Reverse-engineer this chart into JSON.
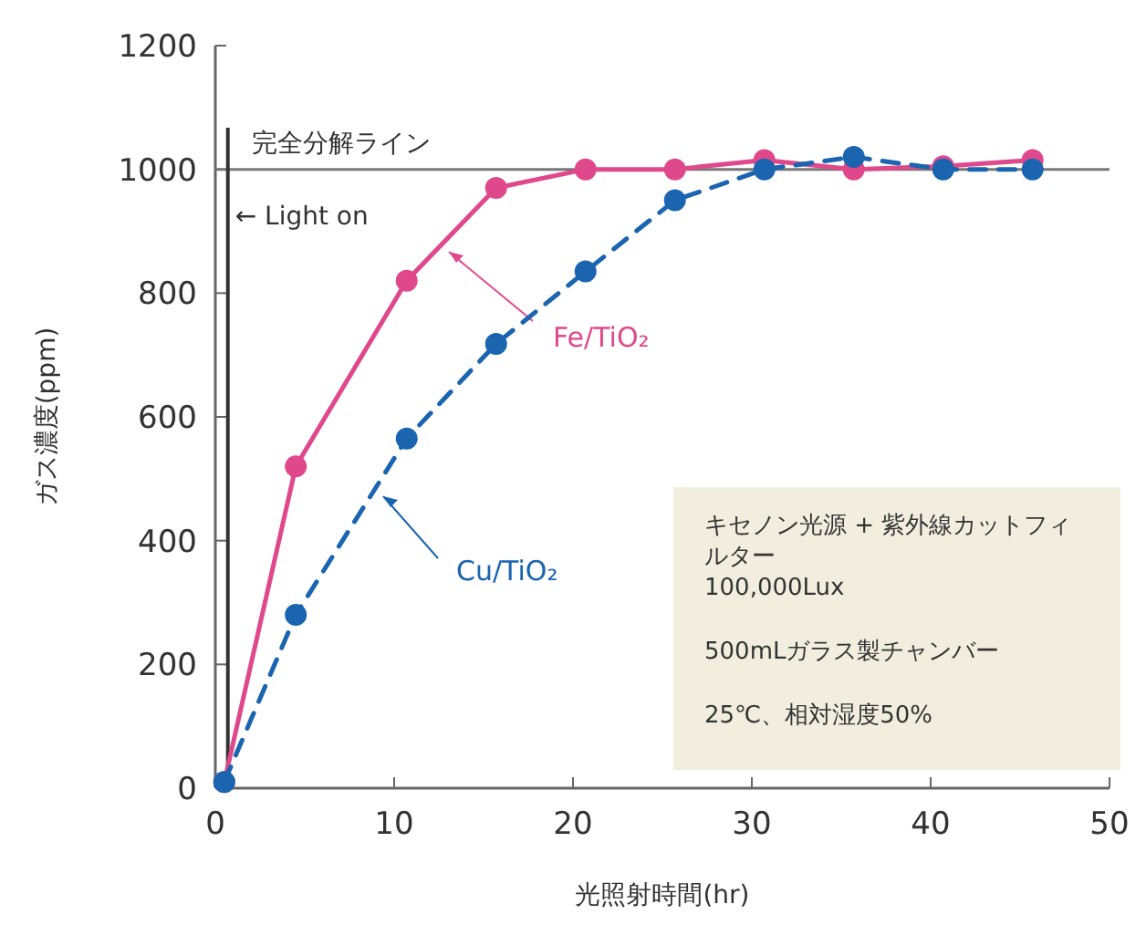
{
  "chart_data": {
    "type": "line",
    "xlabel": "光照射時間(hr)",
    "ylabel": "ガス濃度(ppm)",
    "xlim": [
      0,
      50
    ],
    "xticks": [
      0,
      10,
      20,
      30,
      40,
      50
    ],
    "ylim": [
      0,
      1200
    ],
    "yticks": [
      0,
      200,
      400,
      600,
      800,
      1000,
      1200
    ],
    "marker": "circle",
    "grid": false,
    "series": [
      {
        "name": "Fe/TiO₂",
        "color": "#e0488c",
        "line_style": "solid",
        "x": [
          0.5,
          4.5,
          10.7,
          15.7,
          20.7,
          25.7,
          30.7,
          35.7,
          40.7,
          45.7
        ],
        "values": [
          10,
          520,
          820,
          970,
          1000,
          1000,
          1015,
          1000,
          1005,
          1015
        ]
      },
      {
        "name": "Cu/TiO₂",
        "color": "#1a64b0",
        "line_style": "dashed",
        "x": [
          0.5,
          4.5,
          10.7,
          15.7,
          20.7,
          25.7,
          30.7,
          35.7,
          40.7,
          45.7
        ],
        "values": [
          10,
          280,
          565,
          718,
          835,
          950,
          1000,
          1020,
          1000,
          1000
        ]
      }
    ],
    "ref_lines": [
      {
        "axis": "y",
        "value": 1000,
        "label": "完全分解ライン",
        "color": "#777777"
      },
      {
        "axis": "x",
        "value": 0.7,
        "label": "← Light on",
        "color": "#333333"
      }
    ],
    "annotations": [
      "キセノン光源 + 紫外線カットフィルター",
      "100,000Lux",
      "500mLガラス製チャンバー",
      "25℃、相対湿度50%"
    ]
  }
}
